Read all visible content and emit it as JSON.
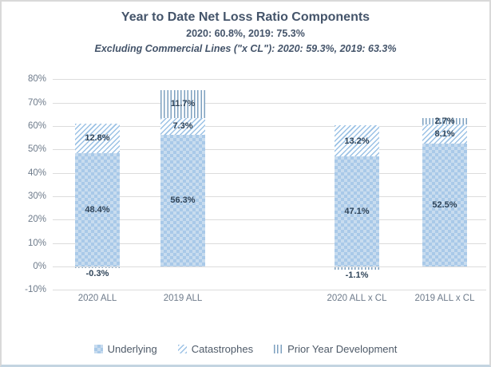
{
  "header": {
    "title": "Year to Date Net Loss Ratio Components",
    "subtitle": "2020: 60.8%, 2019: 75.3%",
    "subtitle_italic": "Excluding Commercial Lines (\"x CL\"): 2020: 59.3%, 2019: 63.3%"
  },
  "chart_data": {
    "type": "bar",
    "stacked": true,
    "title": "Year to Date Net Loss Ratio Components",
    "categories": [
      "2020 ALL",
      "2019 ALL",
      "2020 ALL x CL",
      "2019 ALL x CL"
    ],
    "series": [
      {
        "name": "Underlying",
        "pattern": "checker",
        "values": [
          48.4,
          56.3,
          47.1,
          52.5
        ]
      },
      {
        "name": "Catastrophes",
        "pattern": "diagonal-stripes",
        "values": [
          12.8,
          7.3,
          13.2,
          8.1
        ]
      },
      {
        "name": "Prior Year Development",
        "pattern": "vertical-stripes",
        "values": [
          -0.3,
          11.7,
          -1.1,
          2.7
        ]
      }
    ],
    "totals": {
      "2020 ALL": 60.8,
      "2019 ALL": 75.3,
      "2020 ALL x CL": 59.3,
      "2019 ALL x CL": 63.3
    },
    "xlabel": "",
    "ylabel": "",
    "ylim": [
      -10,
      80
    ],
    "ytick_step": 10,
    "ytick_suffix": "%",
    "value_suffix": "%",
    "grid": true,
    "legend_position": "bottom"
  },
  "colors": {
    "header_text": "#44546A",
    "axis_text": "#6E7B8B",
    "bar_label_text": "#2E4358",
    "gridline": "#DCDCDC",
    "underlying_light": "#C8DCEF",
    "underlying_dark": "#A9C9E8",
    "catastrophes_stripe": "#9CC2E5",
    "prior_year_dev_stripe": "#7DA0BF",
    "frame_border": "#D9D9D9",
    "frame_border_bottom": "#C3D4E1"
  }
}
